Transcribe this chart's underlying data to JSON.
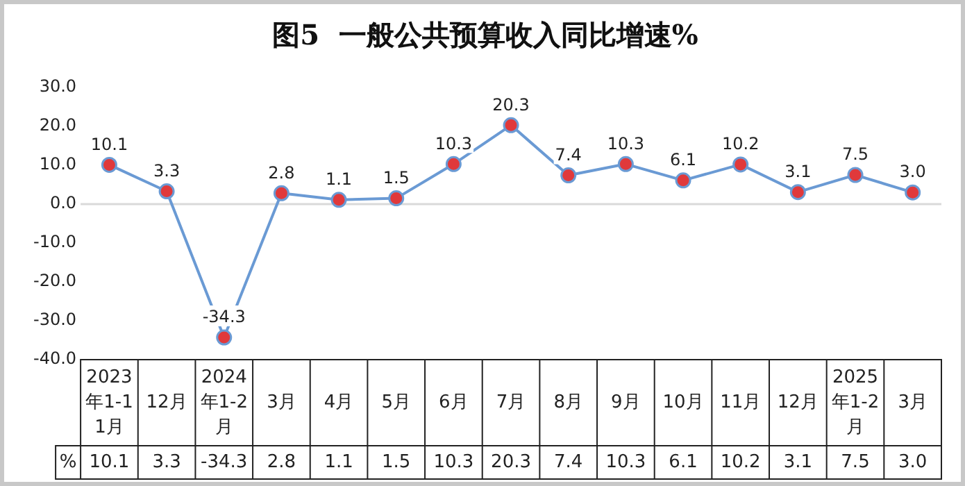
{
  "chart_data": {
    "type": "line",
    "title": "图5  一般公共预算收入同比增速%",
    "categories": [
      "2023年1-11月",
      "12月",
      "2024年1-2月",
      "3月",
      "4月",
      "5月",
      "6月",
      "7月",
      "8月",
      "9月",
      "10月",
      "11月",
      "12月",
      "2025年1-2月",
      "3月"
    ],
    "series": [
      {
        "color": "#6a9ad4",
        "colors": [
          "#e0393b",
          "#e0393b",
          "#e0393b",
          "#e0393b",
          "#e0393b",
          "#e0393b",
          "#e0393b",
          "#e0393b",
          "#e0393b",
          "#e0393b",
          "#e0393b",
          "#e0393b",
          "#e0393b",
          "#e0393b",
          "#e0393b"
        ],
        "values": [
          10.1,
          3.3,
          -34.3,
          2.8,
          1.1,
          1.5,
          10.3,
          20.3,
          7.4,
          10.3,
          6.1,
          10.2,
          3.1,
          7.5,
          3.0
        ],
        "value_labels": [
          "10.1",
          "3.3",
          "-34.3",
          "2.8",
          "1.1",
          "1.5",
          "10.3",
          "20.3",
          "7.4",
          "10.3",
          "6.1",
          "10.2",
          "3.1",
          "7.5",
          "3.0"
        ]
      }
    ],
    "ylim": [
      -40,
      30
    ],
    "yticks": [
      {
        "value": -40,
        "label": "-40.0"
      },
      {
        "value": -30,
        "label": "-30.0"
      },
      {
        "value": -20,
        "label": "-20.0"
      },
      {
        "value": -10,
        "label": "-10.0"
      },
      {
        "value": 0,
        "label": "0.0"
      },
      {
        "value": 10,
        "label": "10.0"
      },
      {
        "value": 20,
        "label": "20.0"
      },
      {
        "value": 30,
        "label": "30.0"
      }
    ],
    "ref_lines": [
      {
        "axis": "y",
        "value": 0,
        "color": "#d9d9d9"
      }
    ],
    "annotations": [
      "%"
    ],
    "grid": false,
    "legend": false,
    "marker": "circle",
    "line_style": "solid"
  }
}
